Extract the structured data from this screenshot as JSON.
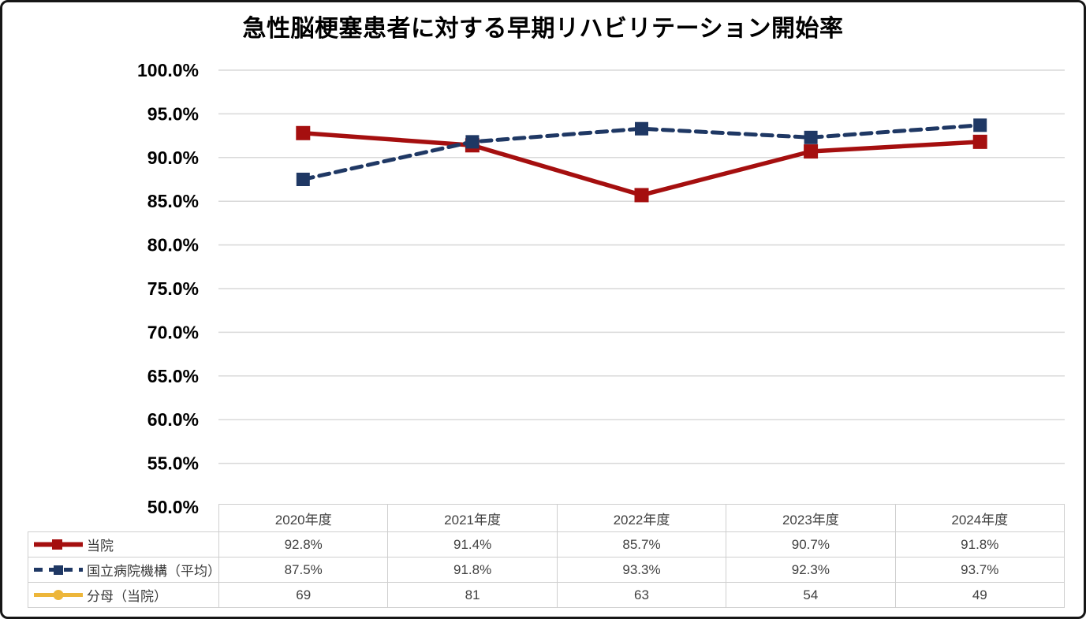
{
  "chart_data": {
    "type": "line",
    "title": "急性脳梗塞患者に対する早期リハビリテーション開始率",
    "categories": [
      "2020年度",
      "2021年度",
      "2022年度",
      "2023年度",
      "2024年度"
    ],
    "series": [
      {
        "name": "当院",
        "values": [
          92.8,
          91.4,
          85.7,
          90.7,
          91.8
        ],
        "values_display": [
          "92.8%",
          "91.4%",
          "85.7%",
          "90.7%",
          "91.8%"
        ],
        "color": "#A50F0F",
        "line_style": "solid",
        "marker": "square",
        "in_plot": true
      },
      {
        "name": "国立病院機構（平均）",
        "values": [
          87.5,
          91.8,
          93.3,
          92.3,
          93.7
        ],
        "values_display": [
          "87.5%",
          "91.8%",
          "93.3%",
          "92.3%",
          "93.7%"
        ],
        "color": "#1F3864",
        "line_style": "dashed",
        "marker": "square",
        "in_plot": true
      },
      {
        "name": "分母（当院）",
        "values": [
          69,
          81,
          63,
          54,
          49
        ],
        "values_display": [
          "69",
          "81",
          "63",
          "54",
          "49"
        ],
        "color": "#EDB63A",
        "line_style": "solid",
        "marker": "circle",
        "in_plot": false
      }
    ],
    "ylim": [
      50,
      100
    ],
    "ytick_step": 5,
    "ytick_labels": [
      "50.0%",
      "55.0%",
      "60.0%",
      "65.0%",
      "70.0%",
      "75.0%",
      "80.0%",
      "85.0%",
      "90.0%",
      "95.0%",
      "100.0%"
    ],
    "grid": "horizontal",
    "gridline_color": "#D9D9D9",
    "legend_position": "table-left"
  },
  "palette": {
    "frame_border": "#161616",
    "table_border": "#CFCFCF",
    "table_text": "#404040",
    "axis_text": "#000000"
  }
}
